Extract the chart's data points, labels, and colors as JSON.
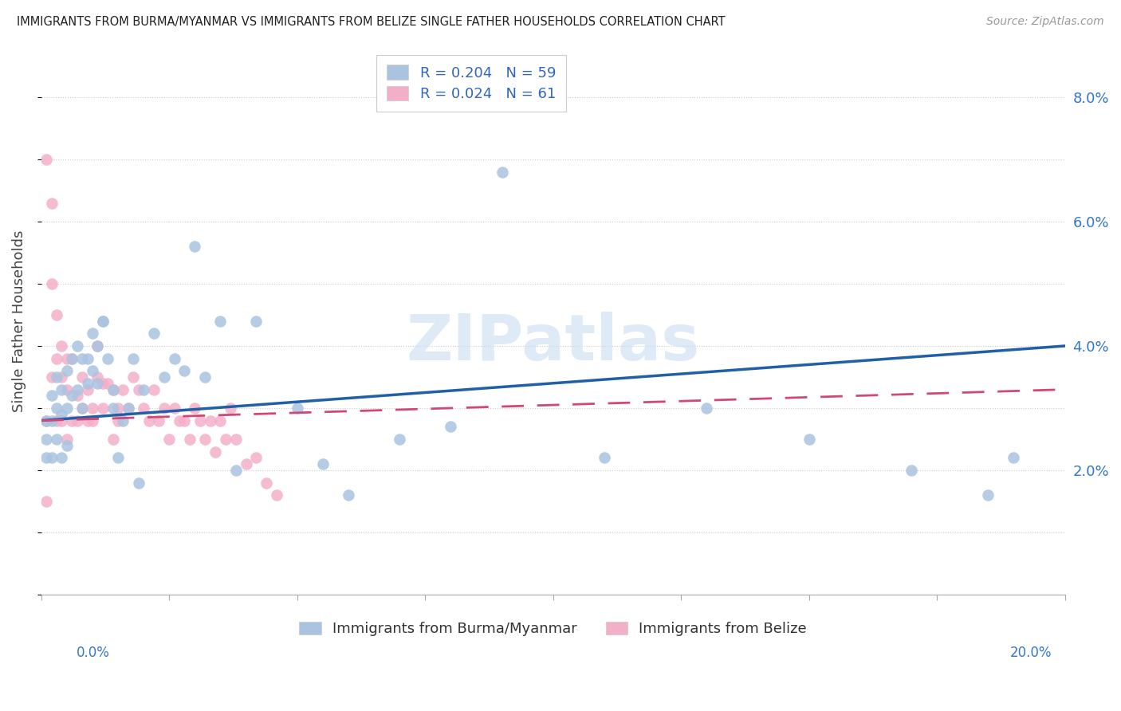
{
  "title": "IMMIGRANTS FROM BURMA/MYANMAR VS IMMIGRANTS FROM BELIZE SINGLE FATHER HOUSEHOLDS CORRELATION CHART",
  "source": "Source: ZipAtlas.com",
  "ylabel": "Single Father Households",
  "xlim": [
    0.0,
    0.2
  ],
  "ylim": [
    0.0,
    0.088
  ],
  "yticks": [
    0.0,
    0.02,
    0.04,
    0.06,
    0.08
  ],
  "ytick_labels": [
    "",
    "2.0%",
    "4.0%",
    "6.0%",
    "8.0%"
  ],
  "xtick_vals": [
    0.0,
    0.025,
    0.05,
    0.075,
    0.1,
    0.125,
    0.15,
    0.175,
    0.2
  ],
  "bottom_legend_blue": "Immigrants from Burma/Myanmar",
  "bottom_legend_pink": "Immigrants from Belize",
  "blue_color": "#aac4e0",
  "pink_color": "#f4afc8",
  "blue_line_color": "#2060a8",
  "pink_line_color": "#d04878",
  "blue_R": 0.204,
  "blue_N": 59,
  "pink_R": 0.024,
  "pink_N": 61,
  "blue_trend_start": 0.028,
  "blue_trend_end": 0.04,
  "pink_trend_start": 0.028,
  "pink_trend_end": 0.033,
  "blue_scatter_x": [
    0.001,
    0.001,
    0.001,
    0.002,
    0.002,
    0.002,
    0.003,
    0.003,
    0.003,
    0.004,
    0.004,
    0.004,
    0.005,
    0.005,
    0.005,
    0.006,
    0.006,
    0.007,
    0.007,
    0.008,
    0.008,
    0.009,
    0.009,
    0.01,
    0.01,
    0.011,
    0.011,
    0.012,
    0.012,
    0.013,
    0.014,
    0.014,
    0.015,
    0.016,
    0.017,
    0.018,
    0.019,
    0.02,
    0.022,
    0.024,
    0.026,
    0.028,
    0.03,
    0.032,
    0.035,
    0.038,
    0.042,
    0.05,
    0.055,
    0.06,
    0.07,
    0.08,
    0.09,
    0.11,
    0.13,
    0.15,
    0.17,
    0.185,
    0.19
  ],
  "blue_scatter_y": [
    0.028,
    0.025,
    0.022,
    0.032,
    0.028,
    0.022,
    0.035,
    0.03,
    0.025,
    0.033,
    0.029,
    0.022,
    0.036,
    0.03,
    0.024,
    0.038,
    0.032,
    0.04,
    0.033,
    0.038,
    0.03,
    0.038,
    0.034,
    0.042,
    0.036,
    0.04,
    0.034,
    0.044,
    0.044,
    0.038,
    0.033,
    0.03,
    0.022,
    0.028,
    0.03,
    0.038,
    0.018,
    0.033,
    0.042,
    0.035,
    0.038,
    0.036,
    0.056,
    0.035,
    0.044,
    0.02,
    0.044,
    0.03,
    0.021,
    0.016,
    0.025,
    0.027,
    0.068,
    0.022,
    0.03,
    0.025,
    0.02,
    0.016,
    0.022
  ],
  "pink_scatter_x": [
    0.001,
    0.001,
    0.001,
    0.002,
    0.002,
    0.002,
    0.003,
    0.003,
    0.003,
    0.004,
    0.004,
    0.004,
    0.005,
    0.005,
    0.005,
    0.006,
    0.006,
    0.007,
    0.007,
    0.008,
    0.008,
    0.009,
    0.009,
    0.01,
    0.01,
    0.011,
    0.011,
    0.012,
    0.012,
    0.013,
    0.014,
    0.014,
    0.015,
    0.015,
    0.016,
    0.017,
    0.018,
    0.019,
    0.02,
    0.021,
    0.022,
    0.023,
    0.024,
    0.025,
    0.026,
    0.027,
    0.028,
    0.029,
    0.03,
    0.031,
    0.032,
    0.033,
    0.034,
    0.035,
    0.036,
    0.037,
    0.038,
    0.04,
    0.042,
    0.044,
    0.046
  ],
  "pink_scatter_y": [
    0.07,
    0.028,
    0.015,
    0.063,
    0.05,
    0.035,
    0.045,
    0.038,
    0.028,
    0.04,
    0.035,
    0.028,
    0.038,
    0.033,
    0.025,
    0.038,
    0.028,
    0.032,
    0.028,
    0.035,
    0.03,
    0.033,
    0.028,
    0.03,
    0.028,
    0.04,
    0.035,
    0.034,
    0.03,
    0.034,
    0.033,
    0.025,
    0.03,
    0.028,
    0.033,
    0.03,
    0.035,
    0.033,
    0.03,
    0.028,
    0.033,
    0.028,
    0.03,
    0.025,
    0.03,
    0.028,
    0.028,
    0.025,
    0.03,
    0.028,
    0.025,
    0.028,
    0.023,
    0.028,
    0.025,
    0.03,
    0.025,
    0.021,
    0.022,
    0.018,
    0.016
  ]
}
